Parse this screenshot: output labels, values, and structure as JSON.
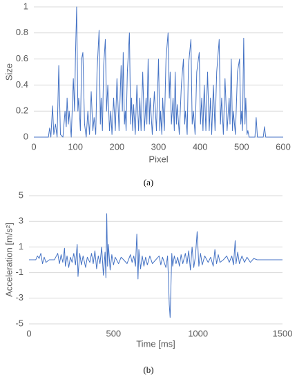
{
  "chart_data": [
    {
      "type": "line",
      "caption": "(a)",
      "xlabel": "Pixel",
      "ylabel": "Size",
      "color": "#4472c4",
      "grid": true,
      "xlim": [
        0,
        600
      ],
      "xticks": [
        0,
        100,
        200,
        300,
        400,
        500,
        600
      ],
      "ylim": [
        0,
        1
      ],
      "yticks": [
        0,
        0.2,
        0.4,
        0.6,
        0.8,
        1
      ],
      "x": [
        0,
        35,
        38,
        41,
        45,
        48,
        52,
        56,
        60,
        64,
        70,
        75,
        78,
        80,
        83,
        85,
        90,
        95,
        98,
        100,
        103,
        106,
        108,
        112,
        115,
        118,
        122,
        126,
        130,
        134,
        138,
        142,
        145,
        149,
        152,
        157,
        160,
        162,
        165,
        168,
        172,
        175,
        178,
        182,
        185,
        188,
        192,
        196,
        200,
        205,
        210,
        213,
        215,
        218,
        220,
        222,
        225,
        230,
        233,
        235,
        238,
        240,
        244,
        248,
        252,
        255,
        258,
        262,
        266,
        270,
        272,
        275,
        278,
        280,
        285,
        290,
        295,
        300,
        303,
        305,
        308,
        310,
        314,
        318,
        323,
        326,
        328,
        331,
        335,
        338,
        340,
        343,
        345,
        350,
        355,
        360,
        363,
        365,
        369,
        372,
        378,
        381,
        384,
        388,
        392,
        398,
        401,
        404,
        407,
        410,
        414,
        418,
        422,
        425,
        428,
        432,
        436,
        440,
        446,
        449,
        452,
        456,
        460,
        465,
        470,
        472,
        475,
        478,
        480,
        485,
        490,
        495,
        498,
        500,
        502,
        505,
        508,
        510,
        513,
        515,
        518,
        532,
        535,
        538,
        552,
        555,
        558,
        600
      ],
      "values": [
        0,
        0,
        0.07,
        0,
        0.24,
        0.02,
        0.1,
        0,
        0.55,
        0.02,
        0,
        0.2,
        0.08,
        0.3,
        0.1,
        0.2,
        0,
        0.45,
        0.2,
        0.6,
        1,
        0.2,
        0.3,
        0.05,
        0.6,
        0.65,
        0.1,
        0,
        0.2,
        0.02,
        0.35,
        0.05,
        0.15,
        0.02,
        0.5,
        0.82,
        0.1,
        0.3,
        0.05,
        0.55,
        0.75,
        0.2,
        0.4,
        0.05,
        0.2,
        0.02,
        0.3,
        0.05,
        0.45,
        0.05,
        0.55,
        0.2,
        0.65,
        0.1,
        0.2,
        0.05,
        0.5,
        0.8,
        0.1,
        0.3,
        0.05,
        0.25,
        0.02,
        0.4,
        0.05,
        0.3,
        0.05,
        0.5,
        0.05,
        0.3,
        0.1,
        0.6,
        0.1,
        0.3,
        0.02,
        0.35,
        0.05,
        0.6,
        0.05,
        0.2,
        0.02,
        0.3,
        0.05,
        0.6,
        0.8,
        0.3,
        0.5,
        0.1,
        0.3,
        0.05,
        0.5,
        0.1,
        0.25,
        0.02,
        0.4,
        0.6,
        0.1,
        0.2,
        0.02,
        0.55,
        0.75,
        0.1,
        0.2,
        0.02,
        0.5,
        0.65,
        0.1,
        0.3,
        0.05,
        0.4,
        0.05,
        0.5,
        0.05,
        0.3,
        0.02,
        0.4,
        0.05,
        0.5,
        0.75,
        0.1,
        0.3,
        0.02,
        0.45,
        0.05,
        0.3,
        0.1,
        0.6,
        0.05,
        0.2,
        0.02,
        0.5,
        0.6,
        0.1,
        0.2,
        0.05,
        0.76,
        0.1,
        0.3,
        0.02,
        0.05,
        0,
        0,
        0.15,
        0,
        0,
        0.08,
        0,
        0
      ]
    },
    {
      "type": "line",
      "caption": "(b)",
      "xlabel": "Time [ms]",
      "ylabel": "Acceleration [m/s²]",
      "color": "#4472c4",
      "grid": true,
      "xlim": [
        0,
        1500
      ],
      "xticks": [
        0,
        500,
        1000,
        1500
      ],
      "ylim": [
        -5,
        5
      ],
      "yticks": [
        -5,
        -3,
        -1,
        1,
        3,
        5
      ],
      "x": [
        0,
        40,
        50,
        60,
        70,
        80,
        90,
        100,
        120,
        150,
        170,
        180,
        190,
        200,
        210,
        215,
        225,
        235,
        245,
        255,
        265,
        275,
        285,
        290,
        300,
        310,
        320,
        335,
        345,
        360,
        370,
        380,
        390,
        400,
        410,
        420,
        430,
        440,
        450,
        455,
        460,
        465,
        470,
        480,
        490,
        500,
        510,
        530,
        545,
        560,
        580,
        600,
        610,
        620,
        630,
        638,
        645,
        650,
        660,
        670,
        680,
        690,
        700,
        715,
        730,
        750,
        770,
        780,
        790,
        800,
        810,
        820,
        825,
        830,
        835,
        840,
        845,
        850,
        860,
        870,
        880,
        890,
        900,
        910,
        925,
        935,
        945,
        955,
        965,
        975,
        985,
        995,
        1005,
        1015,
        1025,
        1040,
        1060,
        1075,
        1090,
        1100,
        1110,
        1120,
        1130,
        1150,
        1170,
        1185,
        1200,
        1210,
        1220,
        1225,
        1235,
        1245,
        1260,
        1275,
        1290,
        1310,
        1330,
        1350,
        1500
      ],
      "values": [
        0,
        0,
        0.3,
        0.1,
        0.5,
        -0.3,
        0.2,
        -0.2,
        0,
        0,
        0.5,
        -0.3,
        0.4,
        -0.2,
        0.9,
        -0.5,
        0.3,
        -0.6,
        0.2,
        -0.2,
        0.5,
        -0.4,
        1.2,
        -1.3,
        0.5,
        -0.4,
        0.3,
        -0.6,
        0.2,
        -0.2,
        0.5,
        -0.3,
        0.7,
        -0.7,
        0.3,
        -0.3,
        1,
        -1.2,
        0.6,
        -1.4,
        3.6,
        -0.5,
        1.2,
        -0.8,
        0.4,
        -0.4,
        0.2,
        -0.3,
        0.2,
        0,
        -0.3,
        0.4,
        -0.2,
        0.3,
        -0.5,
        2,
        -1.5,
        0.8,
        -0.7,
        0.3,
        -0.5,
        0.2,
        -0.4,
        0.3,
        -0.3,
        0,
        0.3,
        -0.4,
        0.2,
        -0.2,
        -0.6,
        0.3,
        -1.5,
        -3.5,
        -4.5,
        -2,
        0.5,
        -0.5,
        0.3,
        -0.3,
        0.2,
        -0.5,
        0.4,
        -0.3,
        0.5,
        -0.3,
        0.7,
        -0.8,
        1,
        -0.6,
        0.3,
        2.2,
        -0.5,
        0.5,
        -0.4,
        0.3,
        -0.2,
        0.2,
        -0.5,
        0.8,
        -0.3,
        0.4,
        -0.2,
        0,
        0.3,
        -0.2,
        0.3,
        -0.4,
        1.5,
        -0.3,
        0.6,
        -0.3,
        0.3,
        -0.2,
        0.2,
        -0.2,
        0.1,
        0,
        0
      ]
    }
  ]
}
